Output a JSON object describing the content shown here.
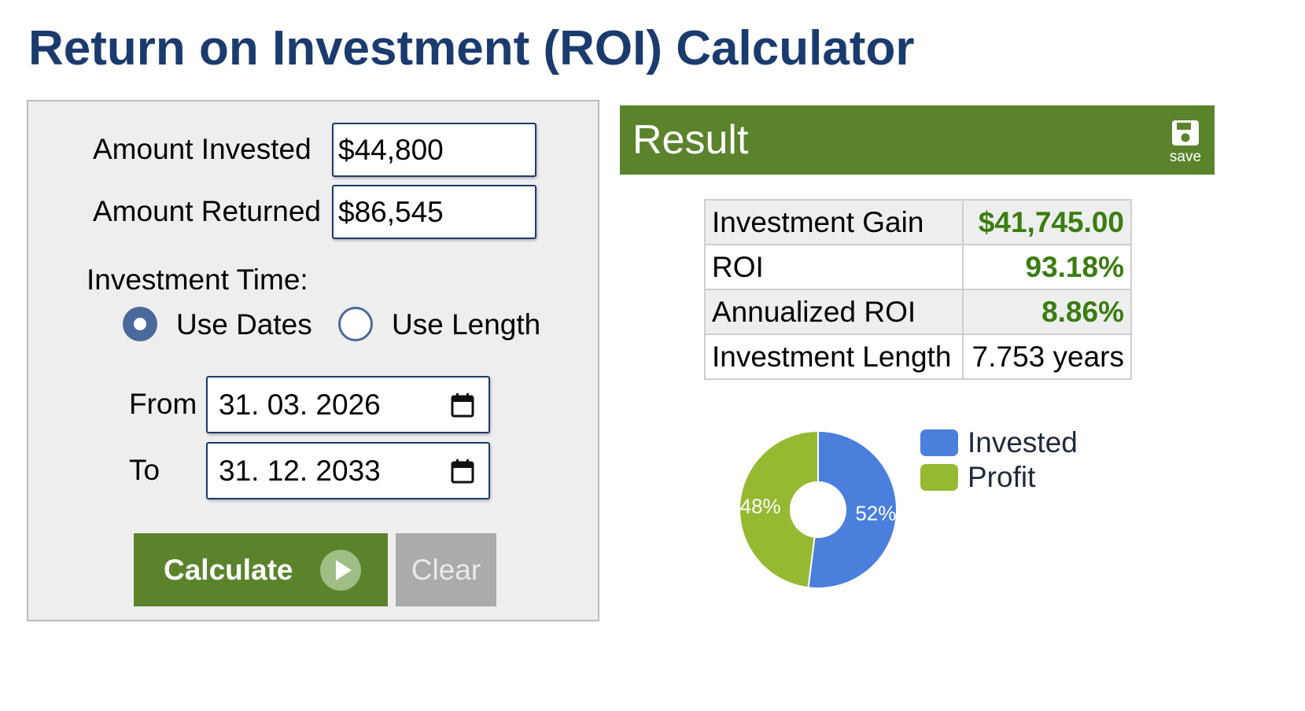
{
  "page_title": "Return on Investment (ROI) Calculator",
  "form": {
    "amount_invested_label": "Amount Invested",
    "amount_invested_value": "$44,800",
    "amount_returned_label": "Amount Returned",
    "amount_returned_value": "$86,545",
    "investment_time_label": "Investment Time:",
    "radio_use_dates": "Use Dates",
    "radio_use_length": "Use Length",
    "selected_mode": "Use Dates",
    "from_label": "From",
    "from_value": "31. 03. 2026",
    "to_label": "To",
    "to_value": "31. 12. 2033",
    "calculate_label": "Calculate",
    "clear_label": "Clear"
  },
  "result": {
    "title": "Result",
    "save_label": "save",
    "rows": [
      {
        "label": "Investment Gain",
        "value": "$41,745.00"
      },
      {
        "label": "ROI",
        "value": "93.18%"
      },
      {
        "label": "Annualized ROI",
        "value": "8.86%"
      },
      {
        "label": "Investment Length",
        "value": "7.753 years"
      }
    ]
  },
  "chart_data": {
    "type": "pie",
    "categories": [
      "Invested",
      "Profit"
    ],
    "values": [
      52,
      48
    ],
    "labels": [
      "52%",
      "48%"
    ],
    "colors": [
      "#4a7fdc",
      "#96b932"
    ],
    "legend": "right"
  },
  "colors": {
    "title": "#1b3b6f",
    "accent_green": "#5b832c",
    "value_green": "#3a7d10",
    "radio_blue": "#4b6a9c"
  }
}
